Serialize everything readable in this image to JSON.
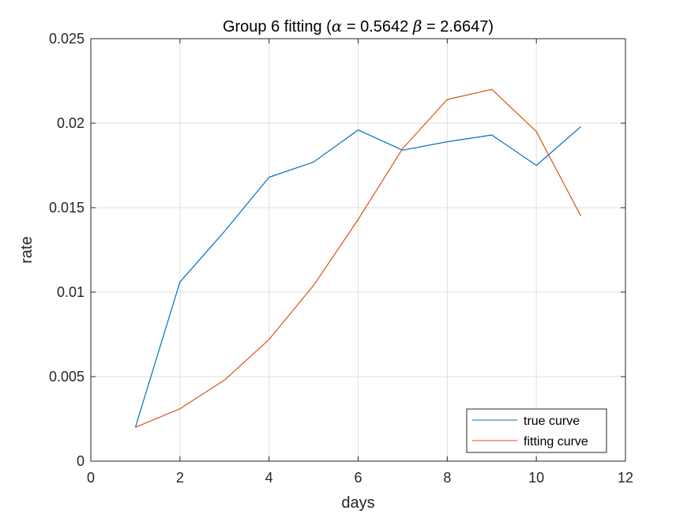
{
  "chart_data": {
    "type": "line",
    "title": {
      "prefix": "Group 6 fitting (",
      "alpha_symbol": "α",
      "alpha_text": " = 0.5642 ",
      "beta_symbol": "β",
      "beta_text": " = 2.6647)"
    },
    "xlabel": "days",
    "ylabel": "rate",
    "xlim": [
      0,
      12
    ],
    "ylim": [
      0,
      0.025
    ],
    "xticks": [
      0,
      2,
      4,
      6,
      8,
      10,
      12
    ],
    "xtick_labels": [
      "0",
      "2",
      "4",
      "6",
      "8",
      "10",
      "12"
    ],
    "yticks": [
      0,
      0.005,
      0.01,
      0.015,
      0.02,
      0.025
    ],
    "ytick_labels": [
      "0",
      "0.005",
      "0.01",
      "0.015",
      "0.02",
      "0.025"
    ],
    "grid": true,
    "legend_position": "bottom-right",
    "x": [
      1,
      2,
      3,
      4,
      5,
      6,
      7,
      8,
      9,
      10,
      11
    ],
    "series": [
      {
        "name": "true curve",
        "color": "#0072BD",
        "values": [
          0.002,
          0.0106,
          0.0136,
          0.0168,
          0.0177,
          0.0196,
          0.0184,
          0.0189,
          0.0193,
          0.0175,
          0.0198
        ]
      },
      {
        "name": "fitting curve",
        "color": "#D95319",
        "values": [
          0.002,
          0.0031,
          0.0048,
          0.0072,
          0.0104,
          0.0143,
          0.0185,
          0.0214,
          0.022,
          0.0195,
          0.0145
        ]
      }
    ]
  }
}
